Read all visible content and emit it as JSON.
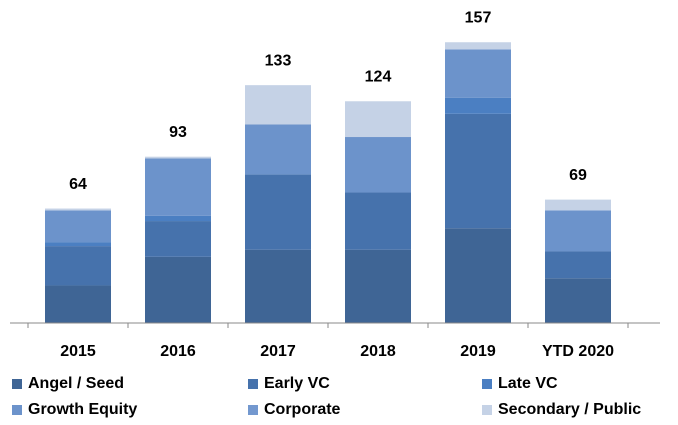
{
  "chart_data": {
    "type": "stacked_bar",
    "categories": [
      "2015",
      "2016",
      "2017",
      "2018",
      "2019",
      "YTD 2020"
    ],
    "series": [
      {
        "name": "Angel / Seed",
        "color": "#3f6595",
        "values": [
          21,
          37,
          41,
          41,
          53,
          25
        ]
      },
      {
        "name": "Early VC",
        "color": "#4672ac",
        "values": [
          22,
          20,
          42,
          32,
          64,
          15
        ]
      },
      {
        "name": "Late VC",
        "color": "#4b7fc2",
        "values": [
          2,
          3,
          0,
          0,
          9,
          0
        ]
      },
      {
        "name": "Growth Equity",
        "color": "#6c93cb",
        "values": [
          18,
          32,
          28,
          31,
          27,
          23
        ]
      },
      {
        "name": "Corporate",
        "color": "#7398cf",
        "values": [
          0,
          0,
          0,
          0,
          0,
          0
        ]
      },
      {
        "name": "Secondary / Public",
        "color": "#c5d2e6",
        "values": [
          1,
          1,
          22,
          20,
          4,
          6
        ]
      }
    ],
    "totals": [
      64,
      93,
      133,
      124,
      157,
      69
    ],
    "ylim": [
      0,
      170
    ]
  }
}
